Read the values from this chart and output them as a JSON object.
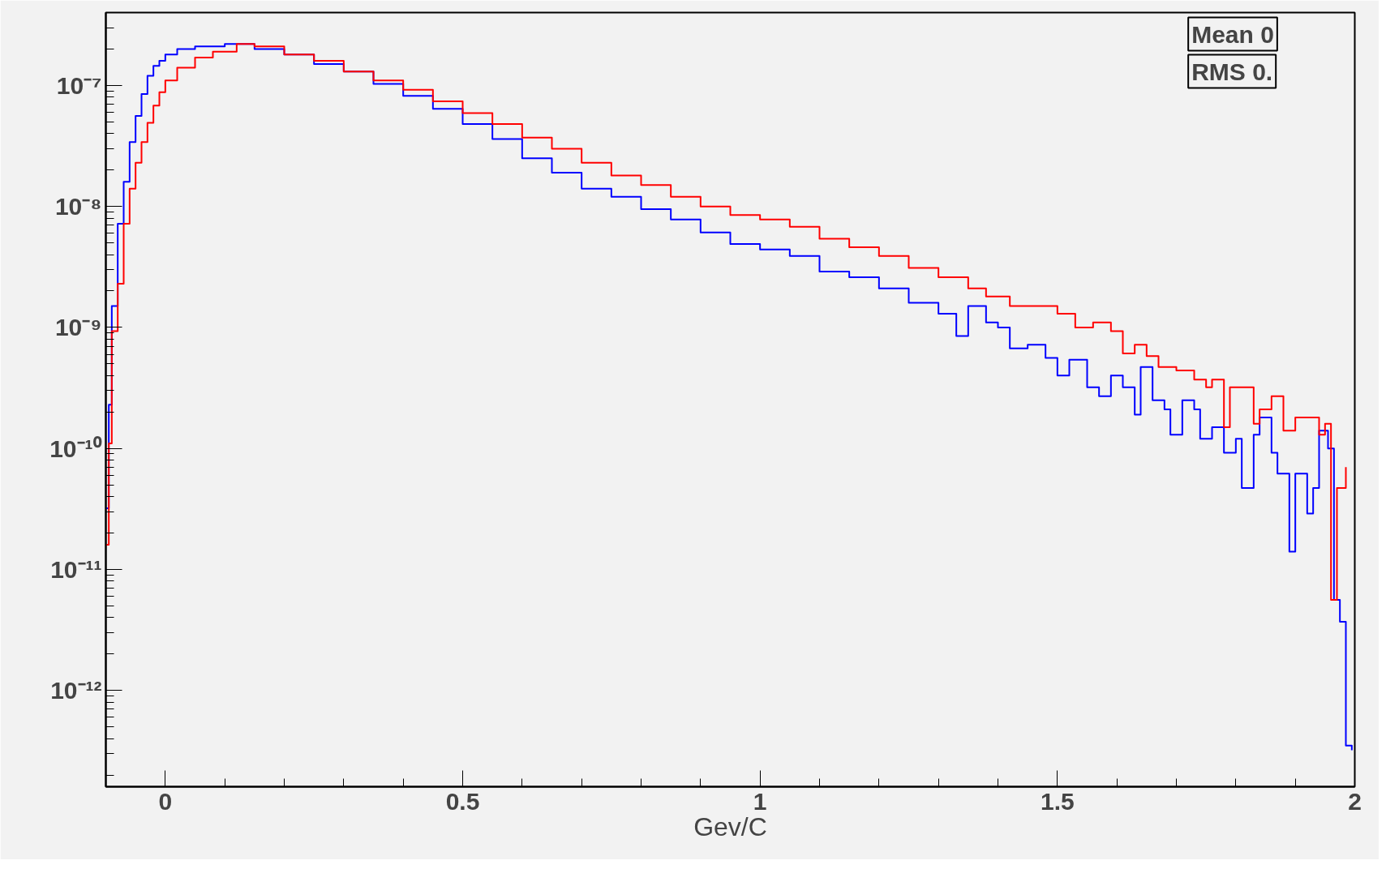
{
  "chart_data": {
    "type": "step",
    "xlabel": "Gev/C",
    "log": "y",
    "grid": false,
    "xlim": [
      -0.1,
      2.0
    ],
    "ylim": [
      1.6e-13,
      4e-07
    ],
    "xticks": [
      0,
      0.5,
      1,
      1.5,
      2
    ],
    "yticks": [
      {
        "value": 1e-07,
        "label": "10⁻⁷"
      },
      {
        "value": 1e-08,
        "label": "10⁻⁸"
      },
      {
        "value": 1e-09,
        "label": "10⁻⁹"
      },
      {
        "value": 1e-10,
        "label": "10⁻¹⁰"
      },
      {
        "value": 1e-11,
        "label": "10⁻¹¹"
      },
      {
        "value": 1e-12,
        "label": "10⁻¹²"
      }
    ],
    "annotations": [
      "Mean 0",
      "RMS 0."
    ],
    "series": [
      {
        "color": "#0000ff",
        "x": [
          -0.1,
          -0.095,
          -0.09,
          -0.08,
          -0.07,
          -0.06,
          -0.05,
          -0.04,
          -0.03,
          -0.02,
          -0.01,
          0,
          0.02,
          0.05,
          0.1,
          0.15,
          0.2,
          0.25,
          0.3,
          0.35,
          0.4,
          0.45,
          0.5,
          0.55,
          0.6,
          0.65,
          0.7,
          0.75,
          0.8,
          0.85,
          0.9,
          0.95,
          1.0,
          1.05,
          1.1,
          1.15,
          1.2,
          1.25,
          1.3,
          1.33,
          1.35,
          1.38,
          1.4,
          1.42,
          1.45,
          1.48,
          1.5,
          1.52,
          1.55,
          1.57,
          1.59,
          1.61,
          1.63,
          1.64,
          1.66,
          1.68,
          1.69,
          1.71,
          1.73,
          1.74,
          1.76,
          1.78,
          1.8,
          1.81,
          1.83,
          1.84,
          1.86,
          1.87,
          1.89,
          1.9,
          1.92,
          1.93,
          1.94,
          1.955,
          1.965,
          1.975,
          1.985,
          1.995
        ],
        "values": [
          3.2e-11,
          2.3e-10,
          1.5e-09,
          7.2e-09,
          1.6e-08,
          3.4e-08,
          5.6e-08,
          8.5e-08,
          1.2e-07,
          1.45e-07,
          1.6e-07,
          1.8e-07,
          2e-07,
          2.1e-07,
          2.2e-07,
          2e-07,
          1.8e-07,
          1.5e-07,
          1.3e-07,
          1.03e-07,
          8.2e-08,
          6.4e-08,
          4.8e-08,
          3.6e-08,
          2.5e-08,
          1.9e-08,
          1.4e-08,
          1.2e-08,
          9.5e-09,
          7.8e-09,
          6.1e-09,
          4.9e-09,
          4.4e-09,
          3.9e-09,
          2.9e-09,
          2.6e-09,
          2.1e-09,
          1.6e-09,
          1.3e-09,
          8.5e-10,
          1.5e-09,
          1.1e-09,
          1e-09,
          6.7e-10,
          7.2e-10,
          5.6e-10,
          4e-10,
          5.4e-10,
          3.2e-10,
          2.7e-10,
          4e-10,
          3.2e-10,
          1.9e-10,
          4.7e-10,
          2.5e-10,
          2.1e-10,
          1.3e-10,
          2.5e-10,
          2.1e-10,
          1.2e-10,
          1.5e-10,
          9.2e-11,
          1.2e-10,
          4.7e-11,
          1.3e-10,
          1.8e-10,
          9.2e-11,
          6.2e-11,
          1.4e-11,
          6.2e-11,
          2.9e-11,
          4.7e-11,
          1.4e-10,
          1e-10,
          5.6e-12,
          3.7e-12,
          3.5e-13,
          3.2e-13
        ]
      },
      {
        "color": "#ff0000",
        "x": [
          -0.1,
          -0.095,
          -0.09,
          -0.08,
          -0.07,
          -0.06,
          -0.05,
          -0.04,
          -0.03,
          -0.02,
          -0.01,
          0,
          0.02,
          0.05,
          0.08,
          0.12,
          0.15,
          0.2,
          0.25,
          0.3,
          0.35,
          0.4,
          0.45,
          0.5,
          0.55,
          0.6,
          0.65,
          0.7,
          0.75,
          0.8,
          0.85,
          0.9,
          0.95,
          1.0,
          1.05,
          1.1,
          1.15,
          1.2,
          1.25,
          1.3,
          1.35,
          1.38,
          1.42,
          1.46,
          1.5,
          1.53,
          1.56,
          1.59,
          1.61,
          1.63,
          1.65,
          1.67,
          1.7,
          1.73,
          1.75,
          1.76,
          1.78,
          1.79,
          1.81,
          1.83,
          1.84,
          1.86,
          1.88,
          1.9,
          1.92,
          1.94,
          1.95,
          1.96,
          1.97,
          1.985
        ],
        "values": [
          1.6e-11,
          1.1e-10,
          9.3e-10,
          2.3e-09,
          7.2e-09,
          1.4e-08,
          2.3e-08,
          3.4e-08,
          4.9e-08,
          6.8e-08,
          8.8e-08,
          1.1e-07,
          1.4e-07,
          1.7e-07,
          1.9e-07,
          2.2e-07,
          2.1e-07,
          1.8e-07,
          1.6e-07,
          1.3e-07,
          1.1e-07,
          9.2e-08,
          7.4e-08,
          5.9e-08,
          4.8e-08,
          3.7e-08,
          3e-08,
          2.3e-08,
          1.8e-08,
          1.5e-08,
          1.2e-08,
          1e-08,
          8.5e-09,
          7.8e-09,
          6.8e-09,
          5.4e-09,
          4.6e-09,
          3.9e-09,
          3.1e-09,
          2.6e-09,
          2.1e-09,
          1.8e-09,
          1.5e-09,
          1.5e-09,
          1.3e-09,
          1e-09,
          1.1e-09,
          9.3e-10,
          6.1e-10,
          7.2e-10,
          5.8e-10,
          4.7e-10,
          4.4e-10,
          3.7e-10,
          3.2e-10,
          3.7e-10,
          1.5e-10,
          3.2e-10,
          3.2e-10,
          1.6e-10,
          2.1e-10,
          2.7e-10,
          1.4e-10,
          1.8e-10,
          1.8e-10,
          1.3e-10,
          1.6e-10,
          5.6e-12,
          4.7e-11,
          7e-11
        ]
      }
    ]
  }
}
